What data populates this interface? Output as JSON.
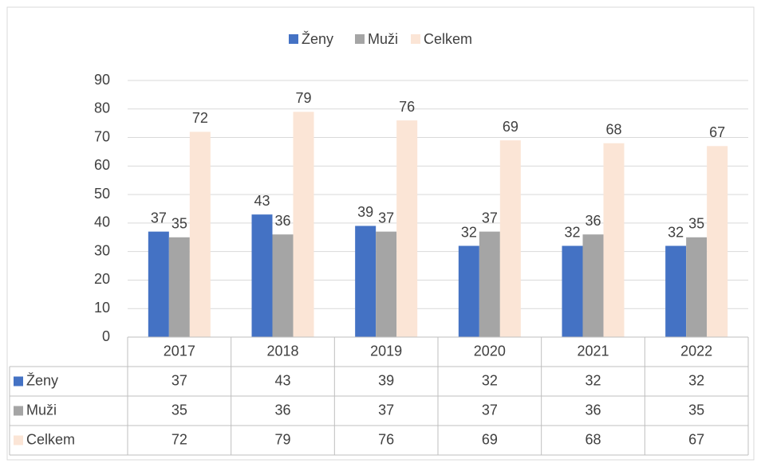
{
  "chart_data": {
    "type": "bar",
    "categories": [
      "2017",
      "2018",
      "2019",
      "2020",
      "2021",
      "2022"
    ],
    "series": [
      {
        "name": "Ženy",
        "color": "#4472c4",
        "values": [
          37,
          43,
          39,
          32,
          32,
          32
        ]
      },
      {
        "name": "Muži",
        "color": "#a5a5a5",
        "values": [
          35,
          36,
          37,
          37,
          36,
          35
        ]
      },
      {
        "name": "Celkem",
        "color": "#fbe5d6",
        "values": [
          72,
          79,
          76,
          69,
          68,
          67
        ]
      }
    ],
    "ylim": [
      0,
      90
    ],
    "yticks": [
      0,
      10,
      20,
      30,
      40,
      50,
      60,
      70,
      80,
      90
    ],
    "grid": true,
    "legend": "top",
    "data_table": true
  }
}
